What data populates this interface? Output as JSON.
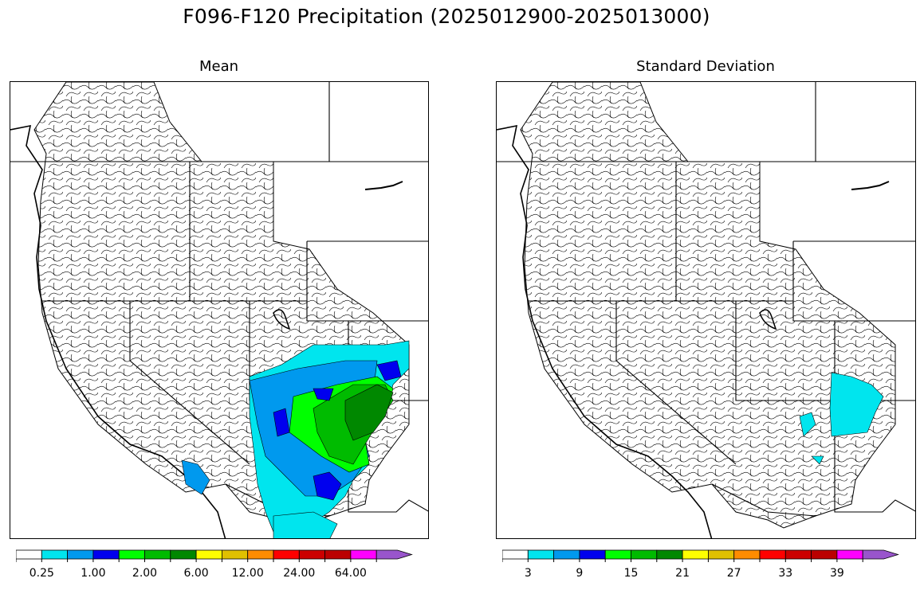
{
  "figure": {
    "title": "F096-F120 Precipitation (2025012900-2025013000)"
  },
  "panels": [
    {
      "id": "mean",
      "title": "Mean",
      "colorbar": {
        "colors": [
          "#ffffff",
          "#00e5ee",
          "#0099ee",
          "#0000ee",
          "#00ff00",
          "#00bb00",
          "#008800",
          "#ffff00",
          "#e0c000",
          "#ff8c00",
          "#ff0000",
          "#cc0000",
          "#bb0000",
          "#ff00ff",
          "#9955cc"
        ],
        "tick_labels": [
          "0.25",
          "1.00",
          "2.00",
          "6.00",
          "12.00",
          "24.00",
          "64.00"
        ],
        "extend": "max"
      }
    },
    {
      "id": "std",
      "title": "Standard Deviation",
      "colorbar": {
        "colors": [
          "#ffffff",
          "#00e5ee",
          "#0099ee",
          "#0000ee",
          "#00ff00",
          "#00bb00",
          "#008800",
          "#ffff00",
          "#e0c000",
          "#ff8c00",
          "#ff0000",
          "#cc0000",
          "#bb0000",
          "#ff00ff",
          "#9955cc"
        ],
        "tick_labels": [
          "3",
          "9",
          "15",
          "21",
          "27",
          "33",
          "39"
        ],
        "extend": "max"
      }
    }
  ]
}
